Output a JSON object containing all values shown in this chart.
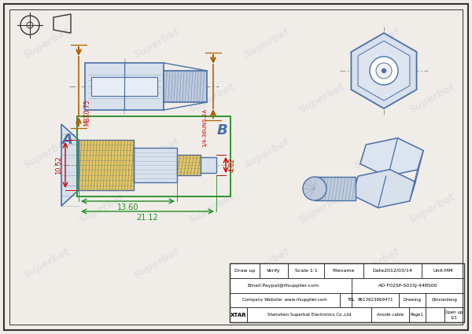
{
  "bg_color": "#f0ede8",
  "border_color": "#333333",
  "drawing_color": "#4a6fa5",
  "dim_color_green": "#228B22",
  "dim_color_red": "#cc0000",
  "orange_color": "#b36000",
  "watermark_color": "#b8c4d0",
  "watermark_text": "Superbat",
  "watermark_alpha": 0.28,
  "connector_fill": "#d8e0ec",
  "thread_fill": "#c0ccdc",
  "hatch_fill": "#e0c870",
  "title_rows": [
    [
      "Draw up",
      "Verify",
      "Scale 1:1",
      "Filename",
      "Date2012/03/14",
      "Unit:MM"
    ],
    [
      "Email:Paypal@rfsupplier.com",
      "AD-F02SP-S01SJ-44BS00"
    ],
    [
      "Company Website: www.rfsupplier.com",
      "TEL",
      "8613923869471",
      "Drawing",
      "Qinxianleng"
    ],
    [
      "XTAR",
      "Shenzhen Superbat Electronics Co.,Ltd",
      "Anode cable",
      "Page1",
      "Open up\n1/1"
    ]
  ]
}
